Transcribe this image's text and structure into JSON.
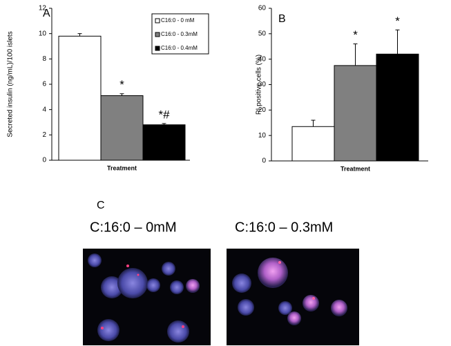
{
  "chart_data": [
    {
      "type": "bar",
      "panel_label": "A",
      "ylabel": "Secreted insulin (ng/mL)/100 islets",
      "xlabel": "Treatment",
      "legend": [
        "C16:0 - 0 mM",
        "C16:0 - 0.3mM",
        "C16:0 - 0.4mM"
      ],
      "values": [
        9.8,
        5.1,
        2.8
      ],
      "errors": [
        0.2,
        0.15,
        0.1
      ],
      "annotations": [
        null,
        "*",
        "*#"
      ],
      "colors": [
        "#ffffff",
        "#808080",
        "#000000"
      ],
      "ylim": [
        0,
        12
      ],
      "yticks": [
        0,
        2,
        4,
        6,
        8,
        10,
        12
      ]
    },
    {
      "type": "bar",
      "panel_label": "B",
      "ylabel": "PI positive cells (%)",
      "xlabel": "Treatment",
      "values": [
        13.5,
        37.5,
        42
      ],
      "errors": [
        2.5,
        8.5,
        9.5
      ],
      "annotations": [
        null,
        "*",
        "*"
      ],
      "colors": [
        "#ffffff",
        "#808080",
        "#000000"
      ],
      "ylim": [
        0,
        60
      ],
      "yticks": [
        0,
        10,
        20,
        30,
        40,
        50,
        60
      ]
    }
  ],
  "panel_c": {
    "label": "C",
    "captions": [
      "C:16:0 – 0mM",
      "C:16:0 – 0.3mM"
    ]
  }
}
